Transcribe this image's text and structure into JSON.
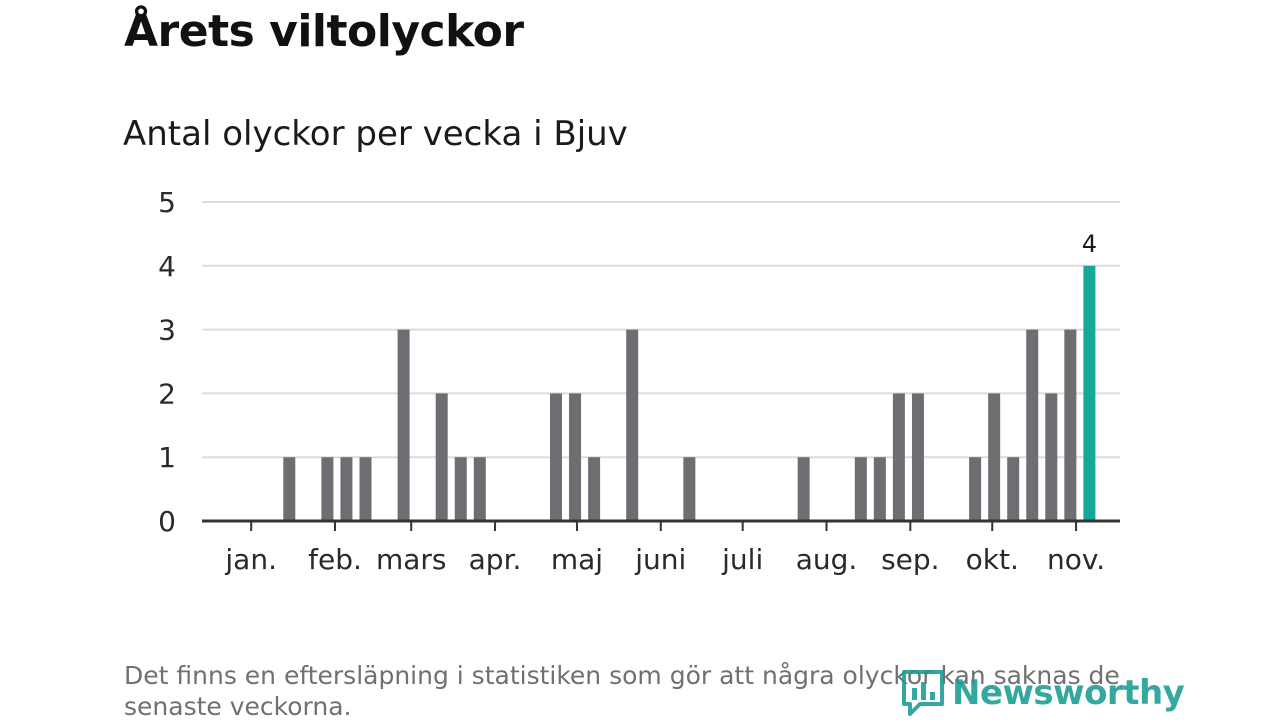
{
  "header": {
    "title": "Årets viltolyckor",
    "subtitle": "Antal olyckor per vecka i Bjuv"
  },
  "chart_data": {
    "type": "bar",
    "title": "Antal olyckor per vecka i Bjuv",
    "xlabel": "",
    "ylabel": "",
    "ylim": [
      0,
      5
    ],
    "yticks": [
      "0",
      "1",
      "2",
      "3",
      "4",
      "5"
    ],
    "weeks": [
      1,
      2,
      3,
      4,
      5,
      6,
      7,
      8,
      9,
      10,
      11,
      12,
      13,
      14,
      15,
      16,
      17,
      18,
      19,
      20,
      21,
      22,
      23,
      24,
      25,
      26,
      27,
      28,
      29,
      30,
      31,
      32,
      33,
      34,
      35,
      36,
      37,
      38,
      39,
      40,
      41,
      42,
      43,
      44,
      45
    ],
    "values": [
      0,
      0,
      1,
      0,
      1,
      1,
      1,
      0,
      3,
      0,
      2,
      1,
      1,
      0,
      0,
      0,
      2,
      2,
      1,
      0,
      3,
      0,
      0,
      1,
      0,
      0,
      0,
      0,
      0,
      1,
      0,
      0,
      1,
      1,
      2,
      2,
      0,
      0,
      1,
      2,
      1,
      3,
      2,
      3,
      4
    ],
    "highlight_index": 44,
    "highlight_label": "4",
    "months": [
      {
        "label": "jan.",
        "week": 1.0
      },
      {
        "label": "feb.",
        "week": 5.4
      },
      {
        "label": "mars",
        "week": 9.4
      },
      {
        "label": "apr.",
        "week": 13.8
      },
      {
        "label": "maj",
        "week": 18.1
      },
      {
        "label": "juni",
        "week": 22.5
      },
      {
        "label": "juli",
        "week": 26.8
      },
      {
        "label": "aug.",
        "week": 31.2
      },
      {
        "label": "sep.",
        "week": 35.6
      },
      {
        "label": "okt.",
        "week": 39.9
      },
      {
        "label": "nov.",
        "week": 44.3
      }
    ],
    "colors": {
      "bar": "#6e6d72",
      "highlight": "#12a89a",
      "grid": "#dcdcdc",
      "axis": "#333333"
    }
  },
  "footer": {
    "note": "Det finns en eftersläpning i statistiken som gör att några olyckor kan saknas de senaste veckorna.",
    "logo_text": "Newsworthy",
    "logo_icon": "bar-chart-bubble-icon"
  }
}
